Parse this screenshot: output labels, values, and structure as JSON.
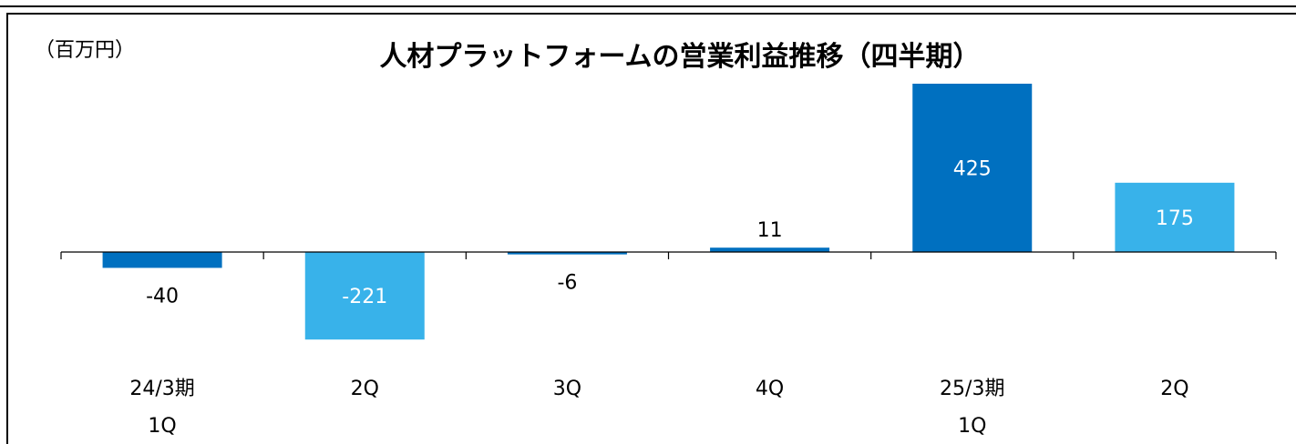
{
  "chart_data": {
    "type": "bar",
    "title": "人材プラットフォームの営業利益推移（四半期）",
    "unit_label": "（百万円）",
    "categories": [
      {
        "line1": "24/3期",
        "line2": "1Q"
      },
      {
        "line1": "2Q",
        "line2": ""
      },
      {
        "line1": "3Q",
        "line2": ""
      },
      {
        "line1": "4Q",
        "line2": ""
      },
      {
        "line1": "25/3期",
        "line2": "1Q"
      },
      {
        "line1": "2Q",
        "line2": ""
      }
    ],
    "values": [
      -40,
      -221,
      -6,
      11,
      425,
      175
    ],
    "data_labels": [
      "-40",
      "-221",
      "-6",
      "11",
      "425",
      "175"
    ],
    "bar_colors": [
      "#0070C0",
      "#38B2EA",
      "#0070C0",
      "#0070C0",
      "#0070C0",
      "#38B2EA"
    ],
    "label_colors": [
      "#000000",
      "#ffffff",
      "#000000",
      "#000000",
      "#ffffff",
      "#ffffff"
    ],
    "label_inside": [
      false,
      true,
      false,
      false,
      true,
      true
    ],
    "ylim": [
      -221,
      425
    ],
    "grid": false,
    "legend": "none"
  }
}
